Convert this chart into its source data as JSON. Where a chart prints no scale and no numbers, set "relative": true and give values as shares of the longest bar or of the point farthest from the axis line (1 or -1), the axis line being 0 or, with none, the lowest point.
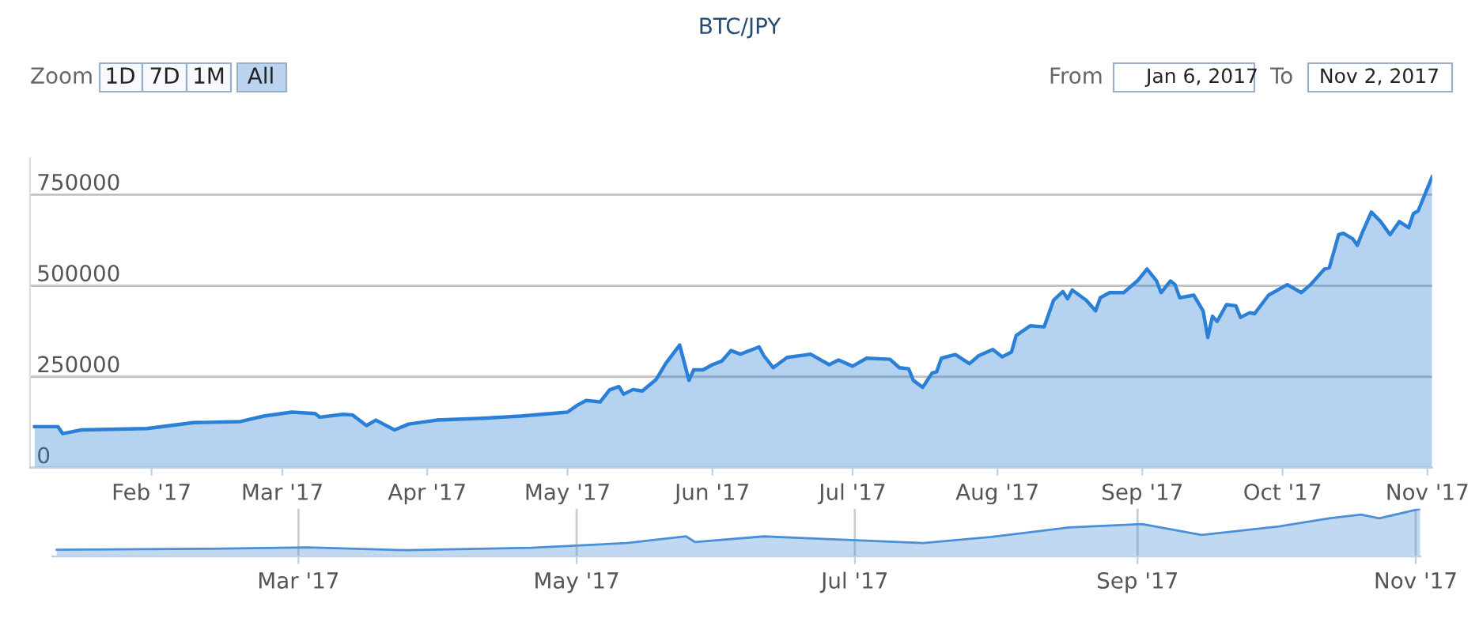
{
  "chart_data": [
    {
      "type": "area",
      "title": "BTC/JPY",
      "annotations": [
        "Zoom",
        "1D",
        "7D",
        "1M",
        "All",
        "From",
        "Jan 6, 2017",
        "To",
        "Nov 2, 2017"
      ],
      "x": [
        "2017-01-07",
        "2017-01-12",
        "2017-01-13",
        "2017-01-17",
        "2017-01-31",
        "2017-02-10",
        "2017-02-20",
        "2017-02-25",
        "2017-03-03",
        "2017-03-08",
        "2017-03-09",
        "2017-03-14",
        "2017-03-16",
        "2017-03-19",
        "2017-03-21",
        "2017-03-25",
        "2017-03-28",
        "2017-04-03",
        "2017-04-13",
        "2017-04-21",
        "2017-05-01",
        "2017-05-03",
        "2017-05-05",
        "2017-05-08",
        "2017-05-10",
        "2017-05-12",
        "2017-05-13",
        "2017-05-15",
        "2017-05-17",
        "2017-05-20",
        "2017-05-22",
        "2017-05-25",
        "2017-05-27",
        "2017-05-28",
        "2017-05-30",
        "2017-06-01",
        "2017-06-03",
        "2017-06-05",
        "2017-06-07",
        "2017-06-11",
        "2017-06-12",
        "2017-06-14",
        "2017-06-17",
        "2017-06-22",
        "2017-06-26",
        "2017-06-28",
        "2017-07-01",
        "2017-07-04",
        "2017-07-09",
        "2017-07-11",
        "2017-07-13",
        "2017-07-14",
        "2017-07-16",
        "2017-07-18",
        "2017-07-19",
        "2017-07-20",
        "2017-07-23",
        "2017-07-26",
        "2017-07-28",
        "2017-07-31",
        "2017-08-02",
        "2017-08-04",
        "2017-08-05",
        "2017-08-08",
        "2017-08-11",
        "2017-08-13",
        "2017-08-15",
        "2017-08-16",
        "2017-08-17",
        "2017-08-20",
        "2017-08-22",
        "2017-08-23",
        "2017-08-25",
        "2017-08-28",
        "2017-08-31",
        "2017-09-02",
        "2017-09-04",
        "2017-09-05",
        "2017-09-07",
        "2017-09-08",
        "2017-09-09",
        "2017-09-12",
        "2017-09-14",
        "2017-09-15",
        "2017-09-16",
        "2017-09-17",
        "2017-09-19",
        "2017-09-21",
        "2017-09-22",
        "2017-09-24",
        "2017-09-25",
        "2017-09-28",
        "2017-10-02",
        "2017-10-05",
        "2017-10-07",
        "2017-10-10",
        "2017-10-11",
        "2017-10-13",
        "2017-10-14",
        "2017-10-16",
        "2017-10-17",
        "2017-10-18",
        "2017-10-20",
        "2017-10-22",
        "2017-10-24",
        "2017-10-26",
        "2017-10-28",
        "2017-10-29",
        "2017-10-30",
        "2017-11-02"
      ],
      "series": [
        {
          "color": "#2a7fd6",
          "values": [
            113000,
            113000,
            94000,
            104000,
            108000,
            124000,
            127000,
            142000,
            153000,
            149000,
            139000,
            147000,
            145000,
            116000,
            131000,
            104000,
            120000,
            131000,
            136000,
            142000,
            153000,
            171000,
            185000,
            181000,
            214000,
            223000,
            202000,
            215000,
            211000,
            243000,
            286000,
            337000,
            240000,
            269000,
            269000,
            283000,
            293000,
            322000,
            312000,
            332000,
            308000,
            275000,
            303000,
            312000,
            283000,
            296000,
            279000,
            301000,
            298000,
            275000,
            272000,
            240000,
            221000,
            260000,
            264000,
            301000,
            311000,
            286000,
            308000,
            325000,
            305000,
            318000,
            363000,
            390000,
            387000,
            460000,
            484000,
            464000,
            488000,
            460000,
            431000,
            467000,
            481000,
            481000,
            514000,
            546000,
            514000,
            481000,
            513000,
            503000,
            467000,
            474000,
            431000,
            358000,
            416000,
            402000,
            448000,
            445000,
            413000,
            426000,
            423000,
            474000,
            503000,
            481000,
            503000,
            546000,
            549000,
            640000,
            644000,
            629000,
            611000,
            644000,
            702000,
            676000,
            640000,
            676000,
            659000,
            698000,
            705000,
            799000
          ]
        }
      ],
      "xlim": [
        "2017-01-06",
        "2017-11-02"
      ],
      "xticks": [
        {
          "value": "2017-02-01",
          "label": "Feb '17"
        },
        {
          "value": "2017-03-01",
          "label": "Mar '17"
        },
        {
          "value": "2017-04-01",
          "label": "Apr '17"
        },
        {
          "value": "2017-05-01",
          "label": "May '17"
        },
        {
          "value": "2017-06-01",
          "label": "Jun '17"
        },
        {
          "value": "2017-07-01",
          "label": "Jul '17"
        },
        {
          "value": "2017-08-01",
          "label": "Aug '17"
        },
        {
          "value": "2017-09-01",
          "label": "Sep '17"
        },
        {
          "value": "2017-10-01",
          "label": "Oct '17"
        },
        {
          "value": "2017-11-01",
          "label": "Nov '17"
        }
      ],
      "ylim": [
        0,
        850000
      ],
      "yticks": [
        0,
        250000,
        500000,
        750000
      ],
      "grid": "y",
      "legend": false,
      "marker": "none",
      "line_style": "solid"
    },
    {
      "type": "area",
      "relative": true,
      "x": [
        "2017-01-07",
        "2017-02-10",
        "2017-03-03",
        "2017-03-25",
        "2017-04-21",
        "2017-05-12",
        "2017-05-25",
        "2017-05-27",
        "2017-06-11",
        "2017-07-16",
        "2017-07-31",
        "2017-08-17",
        "2017-09-02",
        "2017-09-15",
        "2017-10-02",
        "2017-10-13",
        "2017-10-20",
        "2017-10-24",
        "2017-11-02"
      ],
      "series": [
        {
          "color": "#4a8fd8",
          "values": [
            0.14,
            0.16,
            0.19,
            0.13,
            0.18,
            0.28,
            0.42,
            0.3,
            0.42,
            0.28,
            0.41,
            0.61,
            0.68,
            0.45,
            0.63,
            0.8,
            0.88,
            0.8,
            1.0
          ]
        }
      ],
      "xlim": [
        "2017-01-06",
        "2017-11-02"
      ],
      "xticks": [
        {
          "value": "2017-03-01",
          "label": "Mar '17"
        },
        {
          "value": "2017-05-01",
          "label": "May '17"
        },
        {
          "value": "2017-07-01",
          "label": "Jul '17"
        },
        {
          "value": "2017-09-01",
          "label": "Sep '17"
        },
        {
          "value": "2017-11-01",
          "label": "Nov '17"
        }
      ],
      "grid": "x",
      "tick_labels": "x",
      "legend": false
    }
  ]
}
